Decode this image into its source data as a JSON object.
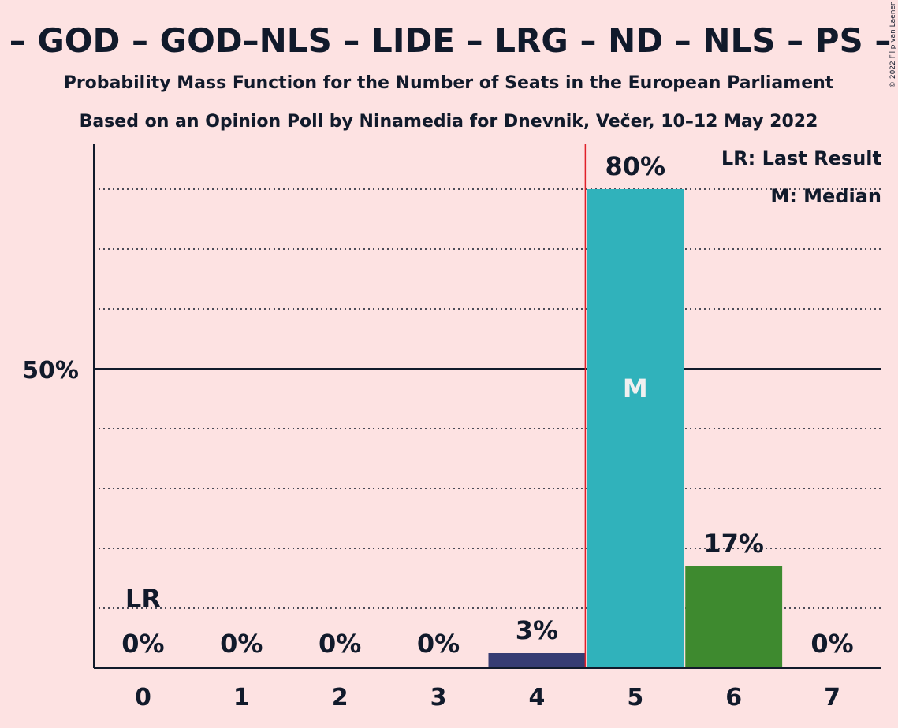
{
  "chart_data": {
    "type": "bar",
    "title": "D – GOD – GOD–NLS – LIDE – LRG – ND – NLS – PS – P",
    "subtitle_1": "Probability Mass Function for the Number of Seats in the European Parliament",
    "subtitle_2": "Based on an Opinion Poll by Ninamedia for Dnevnik, Večer, 10–12 May 2022",
    "categories": [
      "0",
      "1",
      "2",
      "3",
      "4",
      "5",
      "6",
      "7"
    ],
    "values": [
      0,
      0,
      0,
      0,
      2.5,
      80,
      17,
      0
    ],
    "data_labels": [
      "0%",
      "0%",
      "0%",
      "0%",
      "3%",
      "80%",
      "17%",
      "0%"
    ],
    "bar_colors": [
      "#111a2b",
      "#111a2b",
      "#111a2b",
      "#111a2b",
      "#363c73",
      "#30b2bb",
      "#3e8a2f",
      "#111a2b"
    ],
    "ylim": [
      0,
      87.5
    ],
    "ytick_label": "50%",
    "ytick_value": 50,
    "gridlines": [
      10,
      20,
      30,
      40,
      60,
      70,
      80
    ],
    "last_result": {
      "seat": 0,
      "label": "LR"
    },
    "median": {
      "seat": 5,
      "label": "M"
    },
    "legend": {
      "placement": "top-right",
      "lr_text": "LR: Last Result",
      "m_text": "M: Median"
    },
    "copyright": "© 2022 Filip van Laenen",
    "colors": {
      "background": "#fde2e2",
      "text": "#111a2b",
      "majority_line": "#e0202a"
    }
  }
}
